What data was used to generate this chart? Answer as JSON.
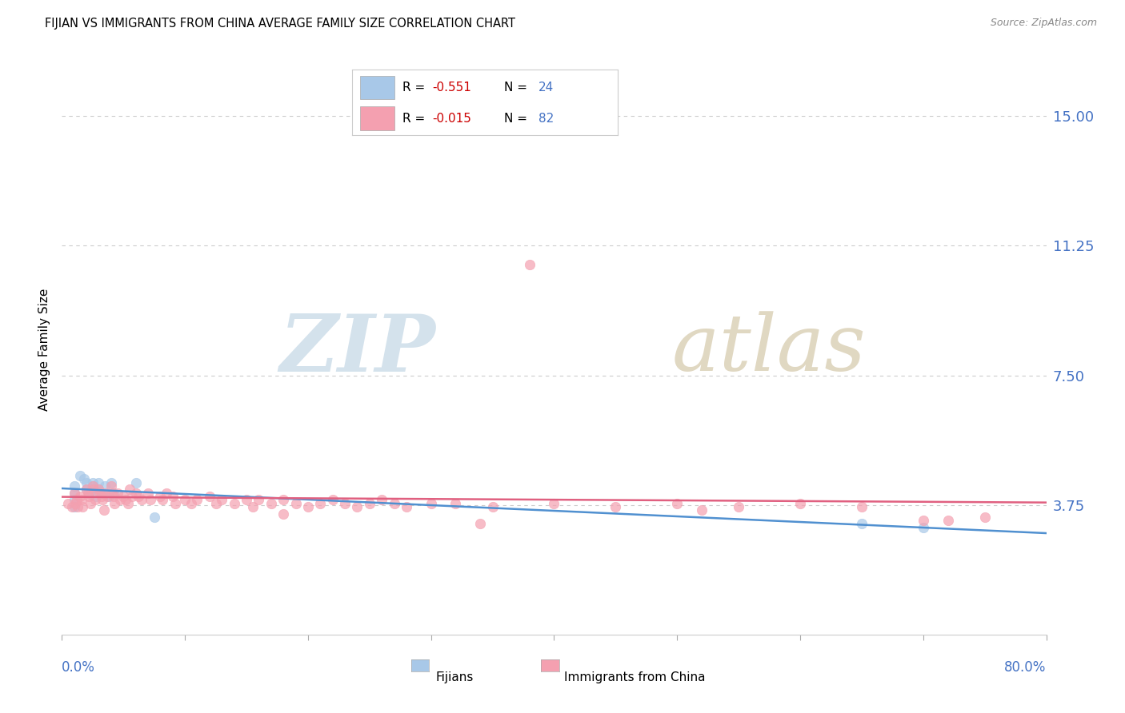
{
  "title": "FIJIAN VS IMMIGRANTS FROM CHINA AVERAGE FAMILY SIZE CORRELATION CHART",
  "source": "Source: ZipAtlas.com",
  "ylabel": "Average Family Size",
  "yticks": [
    3.75,
    7.5,
    11.25,
    15.0
  ],
  "xlim": [
    0.0,
    0.8
  ],
  "ylim": [
    0.0,
    16.5
  ],
  "legend1_R": "-0.551",
  "legend1_N": "24",
  "legend2_R": "-0.015",
  "legend2_N": "82",
  "fijian_color": "#a8c8e8",
  "china_color": "#f4a0b0",
  "fijian_line_color": "#5090d0",
  "china_line_color": "#e06080",
  "fijian_x": [
    0.01,
    0.01,
    0.01,
    0.01,
    0.015,
    0.018,
    0.02,
    0.02,
    0.022,
    0.025,
    0.025,
    0.025,
    0.028,
    0.03,
    0.03,
    0.032,
    0.035,
    0.038,
    0.04,
    0.042,
    0.06,
    0.075,
    0.65,
    0.7
  ],
  "fijian_y": [
    4.3,
    4.1,
    3.9,
    3.7,
    4.6,
    4.5,
    4.4,
    4.2,
    4.1,
    4.4,
    4.3,
    4.2,
    4.0,
    4.4,
    4.2,
    4.1,
    4.3,
    4.0,
    4.4,
    4.1,
    4.4,
    3.4,
    3.2,
    3.1
  ],
  "china_x": [
    0.005,
    0.008,
    0.01,
    0.011,
    0.012,
    0.013,
    0.015,
    0.016,
    0.017,
    0.02,
    0.021,
    0.022,
    0.023,
    0.025,
    0.026,
    0.027,
    0.03,
    0.031,
    0.032,
    0.033,
    0.034,
    0.035,
    0.037,
    0.04,
    0.041,
    0.042,
    0.043,
    0.045,
    0.047,
    0.05,
    0.052,
    0.054,
    0.055,
    0.057,
    0.06,
    0.062,
    0.065,
    0.07,
    0.072,
    0.08,
    0.082,
    0.085,
    0.09,
    0.092,
    0.1,
    0.105,
    0.11,
    0.12,
    0.125,
    0.13,
    0.14,
    0.15,
    0.155,
    0.16,
    0.17,
    0.18,
    0.19,
    0.2,
    0.21,
    0.22,
    0.23,
    0.24,
    0.25,
    0.26,
    0.27,
    0.28,
    0.3,
    0.32,
    0.35,
    0.4,
    0.45,
    0.5,
    0.55,
    0.6,
    0.65,
    0.7,
    0.72,
    0.75,
    0.18,
    0.34,
    0.52,
    0.38
  ],
  "china_y": [
    3.8,
    3.7,
    4.1,
    3.8,
    3.9,
    3.7,
    4.0,
    3.9,
    3.7,
    4.2,
    4.1,
    4.0,
    3.8,
    4.3,
    4.2,
    3.9,
    4.2,
    4.1,
    4.0,
    3.9,
    3.6,
    4.1,
    4.0,
    4.3,
    4.1,
    4.0,
    3.8,
    4.1,
    3.9,
    4.0,
    3.9,
    3.8,
    4.2,
    4.0,
    4.1,
    4.0,
    3.9,
    4.1,
    3.9,
    4.0,
    3.9,
    4.1,
    4.0,
    3.8,
    3.9,
    3.8,
    3.9,
    4.0,
    3.8,
    3.9,
    3.8,
    3.9,
    3.7,
    3.9,
    3.8,
    3.9,
    3.8,
    3.7,
    3.8,
    3.9,
    3.8,
    3.7,
    3.8,
    3.9,
    3.8,
    3.7,
    3.8,
    3.8,
    3.7,
    3.8,
    3.7,
    3.8,
    3.7,
    3.8,
    3.7,
    3.3,
    3.3,
    3.4,
    3.5,
    3.2,
    3.6,
    10.7
  ]
}
